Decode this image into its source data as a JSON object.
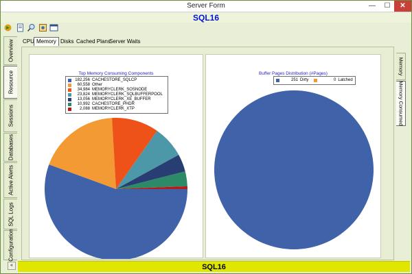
{
  "window": {
    "title": "Server Form",
    "minimize": "—",
    "maximize": "☐",
    "close": "✕"
  },
  "header": {
    "server_name": "SQL16"
  },
  "toolbar": {
    "icons": [
      "run-icon",
      "document-icon",
      "search-icon",
      "settings-icon",
      "window-icon"
    ]
  },
  "left_tabs": [
    "Overview",
    "Resource",
    "Sessions",
    "Databases",
    "Active Alerts",
    "SQL Logs",
    "Configuration"
  ],
  "left_active": "Resource",
  "top_tabs": [
    "CPU",
    "Memory",
    "Disks",
    "Cached Plans",
    "Server Waits"
  ],
  "top_active": "Memory",
  "right_tabs": [
    "Memory",
    "Memory Consumed"
  ],
  "right_active": "Memory Consumed",
  "footer": {
    "text": "SQL16",
    "collapse": "«"
  },
  "colors": {
    "accent": "#0014d6",
    "footer_bg": "#e1e600"
  },
  "chart_data": [
    {
      "type": "pie",
      "title": "Top Memory Consuming Components",
      "legend_position": "top",
      "categories": [
        "CACHESTORE_SQLCP",
        "Other",
        "MEMORYCLERK_SOSNODE",
        "MEMORYCLERK_SQLBUFFERPOOL",
        "MEMORYCLERK_XE_BUFFER",
        "CACHESTORE_PHDR",
        "MEMORYCLERK_XTP"
      ],
      "labels": [
        "182,256",
        "60,558",
        "34,984",
        "23,824",
        "13,056",
        "10,992",
        "2,088"
      ],
      "values": [
        182256,
        60558,
        34984,
        23824,
        13056,
        10992,
        2088
      ],
      "colors": [
        "#4062a8",
        "#f39a35",
        "#ee5218",
        "#4c97a8",
        "#283e72",
        "#2c8a68",
        "#b81a1a"
      ]
    },
    {
      "type": "pie",
      "title": "Buffer Pages Distribution (#Pages)",
      "legend_position": "top",
      "categories": [
        "Dirty",
        "Latched"
      ],
      "labels": [
        "251",
        "0"
      ],
      "values": [
        251,
        0
      ],
      "colors": [
        "#4062a8",
        "#f39a35"
      ]
    }
  ]
}
